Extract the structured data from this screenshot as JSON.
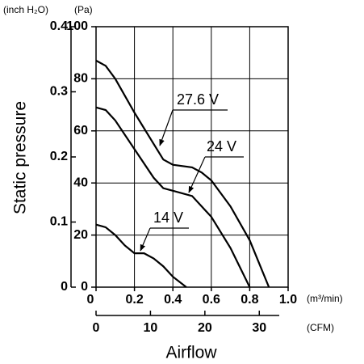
{
  "chart_data": {
    "type": "line",
    "y_label": "Static pressure",
    "x_label": "Airflow",
    "y_unit": "(Pa)",
    "y2_unit": "(inch H₂O)",
    "x_unit": "(m³/min)",
    "x2_unit": "(CFM)",
    "xlim": [
      0,
      1
    ],
    "xticks": [
      0,
      0.2,
      0.4,
      0.6,
      0.8,
      {
        "value": 1,
        "label": "1.0"
      }
    ],
    "x2lim": [
      0,
      35.3
    ],
    "x2ticks": [
      0,
      10,
      20,
      30
    ],
    "ylim": [
      0,
      100
    ],
    "yticks": [
      0,
      20,
      40,
      60,
      80,
      100
    ],
    "y2lim": [
      0,
      0.4
    ],
    "y2ticks": [
      0,
      0.1,
      0.2,
      0.3,
      0.4
    ],
    "grid": true,
    "series": [
      {
        "name": "27.6 V",
        "color": "#000000",
        "x": [
          0,
          0.05,
          0.1,
          0.2,
          0.3,
          0.35,
          0.4,
          0.5,
          0.55,
          0.6,
          0.7,
          0.8,
          0.85,
          0.9
        ],
        "values": [
          87,
          85,
          80,
          67,
          55,
          49,
          47,
          46,
          44,
          41,
          31,
          18,
          9,
          0
        ]
      },
      {
        "name": "24 V",
        "color": "#000000",
        "x": [
          0,
          0.05,
          0.1,
          0.2,
          0.3,
          0.35,
          0.4,
          0.5,
          0.6,
          0.7,
          0.8
        ],
        "values": [
          69,
          68,
          64,
          53,
          42,
          38,
          37,
          35,
          27,
          15,
          0
        ]
      },
      {
        "name": "14 V",
        "color": "#000000",
        "x": [
          0,
          0.05,
          0.1,
          0.15,
          0.2,
          0.25,
          0.3,
          0.35,
          0.4,
          0.47
        ],
        "values": [
          24,
          23,
          20,
          16,
          13,
          13,
          11,
          8,
          4,
          0
        ]
      }
    ]
  }
}
